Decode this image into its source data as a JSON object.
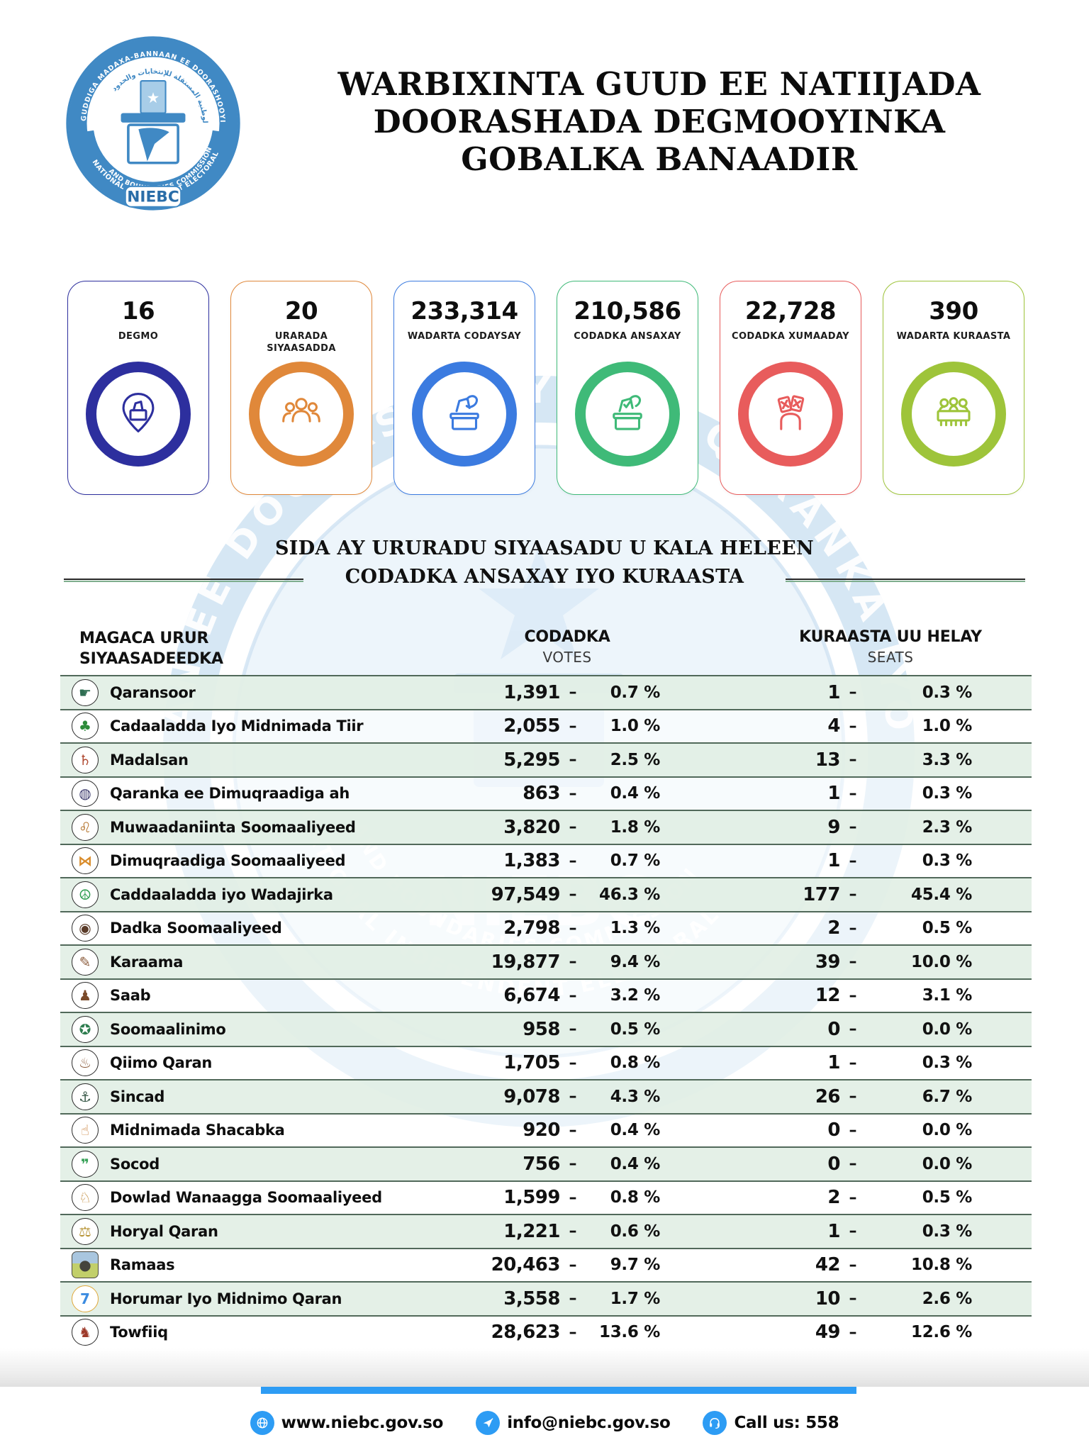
{
  "page": {
    "title_lines": [
      "WARBIXINTA GUUD EE NATIIJADA",
      "DOORASHADA DEGMOOYINKA",
      "GOBALKA BANAADIR"
    ]
  },
  "logo": {
    "ring_text": "GUDDIGA MADAXA-BANNAAN EE DOORASHOOYINKA QARANKA IYO SOOHDIMAHA",
    "arabic_text": "اللجنة الوطنية المستقلة للإنتخابات والحدود",
    "banner_line1": "NATIONAL INDEPENDENT ELECTORAL",
    "banner_line2": "AND BOUNDARIES COMMISSION",
    "abbr": "NIEBC",
    "color": "#4089c4"
  },
  "watermark": {
    "ring_text": "AN EE DOORASHOOYINKA QARANKA IYO S",
    "lower_line1": "NATIONAL INDEPENDENT ELECTORAL",
    "lower_line2": "AND BOUNDARIES COMMISSION",
    "abbr": "NIEBC"
  },
  "stats": [
    {
      "value": "16",
      "label": "DEGMO",
      "color": "#2d2f9e",
      "icon": "district-pin-icon"
    },
    {
      "value": "20",
      "label": "URARADA SIYAASADDA",
      "color": "#e0883a",
      "icon": "people-group-icon"
    },
    {
      "value": "233,314",
      "label": "WADARTA CODAYSAY",
      "color": "#3b7be0",
      "icon": "ballot-cast-icon"
    },
    {
      "value": "210,586",
      "label": "CODADKA ANSAXAY",
      "color": "#3fba78",
      "icon": "ballot-valid-icon"
    },
    {
      "value": "22,728",
      "label": "CODADKA XUMAADAY",
      "color": "#e85c5c",
      "icon": "ballot-rejected-icon"
    },
    {
      "value": "390",
      "label": "WADARTA KURAASTA",
      "color": "#9ec43a",
      "icon": "committee-icon"
    }
  ],
  "section": {
    "line1": "SIDA AY URURADU SIYAASADU U KALA HELEEN",
    "line2": "CODADKA ANSAXAY IYO KURAASTA"
  },
  "table": {
    "dash": "–",
    "headers": {
      "col1_line1": "MAGACA URUR",
      "col1_line2": "SIYAASADEEDKA",
      "votes_label": "CODADKA",
      "votes_sub": "VOTES",
      "seats_label": "KURAASTA UU HELAY",
      "seats_sub": "SEATS"
    },
    "parties": [
      {
        "name": "Qaransoor",
        "icon": "hand-map-icon",
        "glyph": "☛",
        "glyph_color": "#2e6e52",
        "shape": "circle",
        "votes": "1,391",
        "votes_pct": "0.7 %",
        "seats": "1",
        "seats_pct": "0.3 %"
      },
      {
        "name": "Cadaaladda Iyo Midnimada Tiir",
        "icon": "tree-icon",
        "glyph": "♣",
        "glyph_color": "#2e8b3a",
        "shape": "circle",
        "votes": "2,055",
        "votes_pct": "1.0 %",
        "seats": "4",
        "seats_pct": "1.0 %"
      },
      {
        "name": "Madalsan",
        "icon": "chair-icon",
        "glyph": "♄",
        "glyph_color": "#b04a32",
        "shape": "circle",
        "votes": "5,295",
        "votes_pct": "2.5 %",
        "seats": "13",
        "seats_pct": "3.3 %"
      },
      {
        "name": "Qaranka ee Dimuqraadiga ah",
        "icon": "lantern-icon",
        "glyph": "◍",
        "glyph_color": "#3e3c6e",
        "shape": "circle",
        "votes": "863",
        "votes_pct": "0.4 %",
        "seats": "1",
        "seats_pct": "0.3 %"
      },
      {
        "name": "Muwaadaniinta Soomaaliyeed",
        "icon": "lion-icon",
        "glyph": "♌",
        "glyph_color": "#b5762f",
        "shape": "circle",
        "votes": "3,820",
        "votes_pct": "1.8 %",
        "seats": "9",
        "seats_pct": "2.3 %"
      },
      {
        "name": "Dimuqraadiga Soomaaliyeed",
        "icon": "butterfly-icon",
        "glyph": "⋈",
        "glyph_color": "#d98c2b",
        "shape": "circle",
        "votes": "1,383",
        "votes_pct": "0.7 %",
        "seats": "1",
        "seats_pct": "0.3 %"
      },
      {
        "name": "Caddaaladda iyo Wadajirka",
        "icon": "dove-icon",
        "glyph": "☮",
        "glyph_color": "#2f9e4f",
        "shape": "circle",
        "votes": "97,549",
        "votes_pct": "46.3 %",
        "seats": "177",
        "seats_pct": "45.4 %"
      },
      {
        "name": "Dadka Soomaaliyeed",
        "icon": "eye-icon",
        "glyph": "◉",
        "glyph_color": "#5a3b28",
        "shape": "circle",
        "votes": "2,798",
        "votes_pct": "1.3 %",
        "seats": "2",
        "seats_pct": "0.5 %"
      },
      {
        "name": "Karaama",
        "icon": "book-pen-icon",
        "glyph": "✎",
        "glyph_color": "#8a5a3a",
        "shape": "circle",
        "votes": "19,877",
        "votes_pct": "9.4 %",
        "seats": "39",
        "seats_pct": "10.0 %"
      },
      {
        "name": "Saab",
        "icon": "vessel-icon",
        "glyph": "♟",
        "glyph_color": "#7a4a2a",
        "shape": "circle",
        "votes": "6,674",
        "votes_pct": "3.2 %",
        "seats": "12",
        "seats_pct": "3.1 %"
      },
      {
        "name": "Soomaalinimo",
        "icon": "badge-ball-icon",
        "glyph": "✪",
        "glyph_color": "#2e7d4f",
        "shape": "circle",
        "votes": "958",
        "votes_pct": "0.5 %",
        "seats": "0",
        "seats_pct": "0.0 %"
      },
      {
        "name": "Qiimo Qaran",
        "icon": "incense-burner-icon",
        "glyph": "♨",
        "glyph_color": "#8a5a3a",
        "shape": "circle",
        "votes": "1,705",
        "votes_pct": "0.8 %",
        "seats": "1",
        "seats_pct": "0.3 %"
      },
      {
        "name": "Sincad",
        "icon": "ship-icon",
        "glyph": "⚓",
        "glyph_color": "#3a5a4a",
        "shape": "circle",
        "votes": "9,078",
        "votes_pct": "4.3 %",
        "seats": "26",
        "seats_pct": "6.7 %"
      },
      {
        "name": "Midnimada Shacabka",
        "icon": "raised-finger-icon",
        "glyph": "☝",
        "glyph_color": "#c9803a",
        "shape": "circle",
        "votes": "920",
        "votes_pct": "0.4 %",
        "seats": "0",
        "seats_pct": "0.0 %"
      },
      {
        "name": "Socod",
        "icon": "footsteps-icon",
        "glyph": "❞",
        "glyph_color": "#3aa35a",
        "shape": "circle",
        "votes": "756",
        "votes_pct": "0.4 %",
        "seats": "0",
        "seats_pct": "0.0 %"
      },
      {
        "name": "Dowlad Wanaagga Soomaaliyeed",
        "icon": "giraffe-icon",
        "glyph": "♘",
        "glyph_color": "#c08a3a",
        "shape": "circle",
        "votes": "1,599",
        "votes_pct": "0.8 %",
        "seats": "2",
        "seats_pct": "0.5 %"
      },
      {
        "name": "Horyal Qaran",
        "icon": "scales-icon",
        "glyph": "⚖",
        "glyph_color": "#b8963a",
        "shape": "circle",
        "votes": "1,221",
        "votes_pct": "0.6 %",
        "seats": "1",
        "seats_pct": "0.3 %"
      },
      {
        "name": "Ramaas",
        "icon": "elephant-photo-icon",
        "glyph": "●",
        "glyph_color": "#44443c",
        "shape": "square",
        "votes": "20,463",
        "votes_pct": "9.7 %",
        "seats": "42",
        "seats_pct": "10.8 %"
      },
      {
        "name": "Horumar Iyo Midnimo Qaran",
        "icon": "number-7-icon",
        "glyph": "7",
        "glyph_color": "#3b8be0",
        "ring_color": "#e0a83a",
        "shape": "circle",
        "votes": "3,558",
        "votes_pct": "1.7 %",
        "seats": "10",
        "seats_pct": "2.6 %"
      },
      {
        "name": "Towfiiq",
        "icon": "horse-icon",
        "glyph": "♞",
        "glyph_color": "#9e3a2a",
        "shape": "circle",
        "votes": "28,623",
        "votes_pct": "13.6 %",
        "seats": "49",
        "seats_pct": "12.6 %"
      }
    ]
  },
  "footer": {
    "items": [
      {
        "icon": "globe-icon",
        "label": "www.niebc.gov.so"
      },
      {
        "icon": "send-icon",
        "label": "info@niebc.gov.so"
      },
      {
        "icon": "headset-icon",
        "label": "Call us: 558"
      }
    ]
  },
  "colors": {
    "logo_blue": "#4089c4",
    "footer_blue": "#2d9cf4",
    "row_stripe_green": "#e3efe6",
    "row_separator": "#51695a",
    "watermark_blue": "#d2e4f3"
  }
}
